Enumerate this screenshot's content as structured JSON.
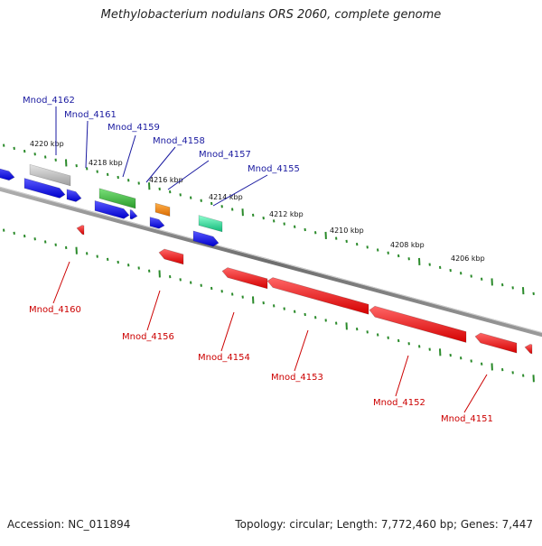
{
  "title": "Methylobacterium nodulans ORS 2060, complete genome",
  "footer": {
    "accession": "Accession: NC_011894",
    "stats": "Topology: circular; Length: 7,772,460 bp; Genes: 7,447"
  },
  "colors": {
    "forward_gene": "#1a1aff",
    "reverse_gene": "#ee1111",
    "forward_label": "#1a1aa0",
    "reverse_label": "#cc0000",
    "tick": "#2a8a2a",
    "backbone": "#7a7a7a",
    "pseudo_gene": "#bdbdbd",
    "green_gene": "#3fbf3f",
    "orange_gene": "#ff8c00",
    "teal_gene": "#22dd99"
  },
  "ruler_labels": [
    "4220 kbp",
    "4218 kbp",
    "4216 kbp",
    "4214 kbp",
    "4212 kbp",
    "4210 kbp",
    "4208 kbp",
    "4206 kbp"
  ],
  "forward_genes": [
    "Mnod_4162",
    "Mnod_4161",
    "Mnod_4159",
    "Mnod_4158",
    "Mnod_4157",
    "Mnod_4155"
  ],
  "reverse_genes": [
    "Mnod_4160",
    "Mnod_4156",
    "Mnod_4154",
    "Mnod_4153",
    "Mnod_4152",
    "Mnod_4151"
  ]
}
